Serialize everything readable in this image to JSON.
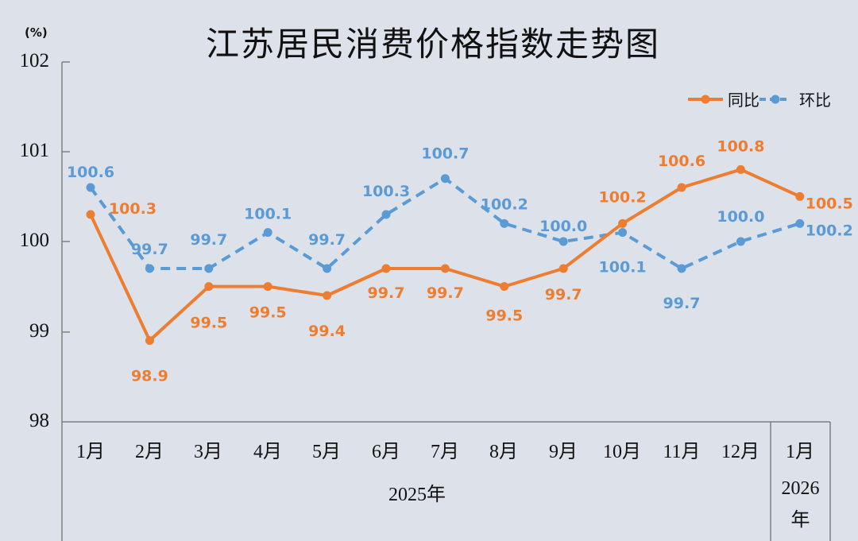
{
  "title": "江苏居民消费价格指数走势图",
  "unit": "(%)",
  "y_ticks": [
    "102",
    "101",
    "100",
    "99",
    "98"
  ],
  "x_ticks": [
    "1月",
    "2月",
    "3月",
    "4月",
    "5月",
    "6月",
    "7月",
    "8月",
    "9月",
    "10月",
    "11月",
    "12月",
    "1月"
  ],
  "year_labels": {
    "y2025": "2025年",
    "y2026_num": "2026",
    "y2026_suffix": "年"
  },
  "legend": {
    "yoy": "同比",
    "mom": "环比"
  },
  "colors": {
    "yoy": "#ed7d31",
    "mom": "#5b9bd5",
    "background": "#dde1ea",
    "axis": "#7f7f7f"
  },
  "chart_data": {
    "type": "line",
    "title": "江苏居民消费价格指数走势图",
    "xlabel": "",
    "ylabel": "(%)",
    "categories": [
      "2025年1月",
      "2025年2月",
      "2025年3月",
      "2025年4月",
      "2025年5月",
      "2025年6月",
      "2025年7月",
      "2025年8月",
      "2025年9月",
      "2025年10月",
      "2025年11月",
      "2025年12月",
      "2026年1月"
    ],
    "series": [
      {
        "name": "同比",
        "style": "solid",
        "color": "#ed7d31",
        "values": [
          100.3,
          98.9,
          99.5,
          99.5,
          99.4,
          99.7,
          99.7,
          99.5,
          99.7,
          100.2,
          100.6,
          100.8,
          100.5
        ]
      },
      {
        "name": "环比",
        "style": "dashed",
        "color": "#5b9bd5",
        "values": [
          100.6,
          99.7,
          99.7,
          100.1,
          99.7,
          100.3,
          100.7,
          100.2,
          100.0,
          100.1,
          99.7,
          100.0,
          100.2
        ]
      }
    ],
    "ylim": [
      98,
      102
    ],
    "y_ticks": [
      98,
      99,
      100,
      101,
      102
    ],
    "grid": false,
    "legend_position": "top-right"
  }
}
